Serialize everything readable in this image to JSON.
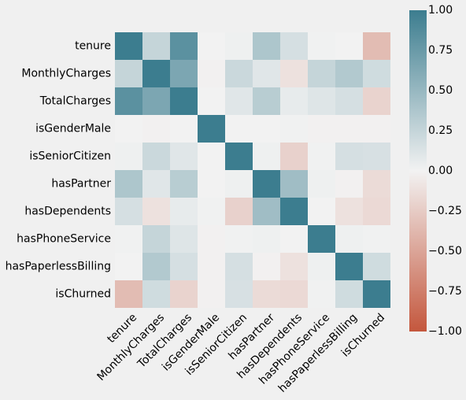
{
  "chart_data": {
    "type": "heatmap",
    "title": "",
    "xlabel": "",
    "ylabel": "",
    "rows": [
      "tenure",
      "MonthlyCharges",
      "TotalCharges",
      "isGenderMale",
      "isSeniorCitizen",
      "hasPartner",
      "hasDependents",
      "hasPhoneService",
      "hasPaperlessBilling",
      "isChurned"
    ],
    "columns": [
      "tenure",
      "MonthlyCharges",
      "TotalCharges",
      "isGenderMale",
      "isSeniorCitizen",
      "hasPartner",
      "hasDependents",
      "hasPhoneService",
      "hasPaperlessBilling",
      "isChurned"
    ],
    "values": [
      [
        1.0,
        0.25,
        0.83,
        0.0,
        0.02,
        0.38,
        0.16,
        0.01,
        0.0,
        -0.35
      ],
      [
        0.25,
        1.0,
        0.65,
        -0.01,
        0.22,
        0.1,
        -0.11,
        0.25,
        0.35,
        0.19
      ],
      [
        0.83,
        0.65,
        1.0,
        0.0,
        0.1,
        0.32,
        0.06,
        0.11,
        0.16,
        -0.2
      ],
      [
        0.0,
        -0.01,
        0.0,
        1.0,
        0.0,
        0.0,
        0.01,
        -0.01,
        -0.01,
        -0.01
      ],
      [
        0.02,
        0.22,
        0.1,
        0.0,
        1.0,
        0.02,
        -0.21,
        0.01,
        0.16,
        0.15
      ],
      [
        0.38,
        0.1,
        0.32,
        0.0,
        0.02,
        1.0,
        0.45,
        0.02,
        -0.01,
        -0.15
      ],
      [
        0.16,
        -0.11,
        0.06,
        0.01,
        -0.21,
        0.45,
        1.0,
        0.0,
        -0.11,
        -0.16
      ],
      [
        0.01,
        0.25,
        0.11,
        -0.01,
        0.01,
        0.02,
        0.0,
        1.0,
        0.02,
        0.01
      ],
      [
        0.0,
        0.35,
        0.16,
        -0.01,
        0.16,
        -0.01,
        -0.11,
        0.02,
        1.0,
        0.19
      ],
      [
        -0.35,
        0.19,
        -0.2,
        -0.01,
        0.15,
        -0.15,
        -0.16,
        0.01,
        0.19,
        1.0
      ]
    ],
    "vmin": -1,
    "vmax": 1,
    "colorbar_ticks": [
      "1.00",
      "0.75",
      "0.50",
      "0.25",
      "0.00",
      "−0.25",
      "−0.50",
      "−0.75",
      "−1.00"
    ],
    "colorbar_tick_values": [
      1,
      0.75,
      0.5,
      0.25,
      0,
      -0.25,
      -0.5,
      -0.75,
      -1
    ],
    "colormap": {
      "negative_end": "#c4573d",
      "center": "#f2f2f2",
      "positive_end": "#3c7d8f"
    },
    "grid": false,
    "background": "#f0f0f0"
  }
}
